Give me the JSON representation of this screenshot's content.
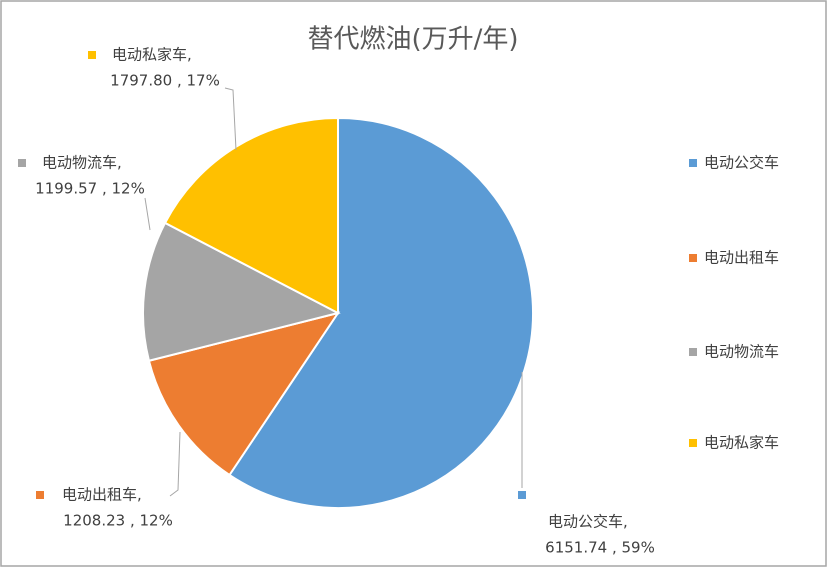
{
  "chart_data": {
    "type": "pie",
    "title": "替代燃油(万升/年)",
    "categories": [
      "电动公交车",
      "电动出租车",
      "电动物流车",
      "电动私家车"
    ],
    "values": [
      6151.74,
      1208.23,
      1199.57,
      1797.8
    ],
    "value_labels": [
      [
        "电动公交车,",
        "6151.74 , 59%"
      ],
      [
        "电动出租车,",
        "1208.23 , 12%"
      ],
      [
        "电动物流车,",
        "1199.57 , 12%"
      ],
      [
        "电动私家车,",
        "1797.80 , 17%"
      ]
    ],
    "colors": [
      "#5b9bd5",
      "#ed7d31",
      "#a5a5a5",
      "#ffc000"
    ],
    "legend": "right"
  }
}
